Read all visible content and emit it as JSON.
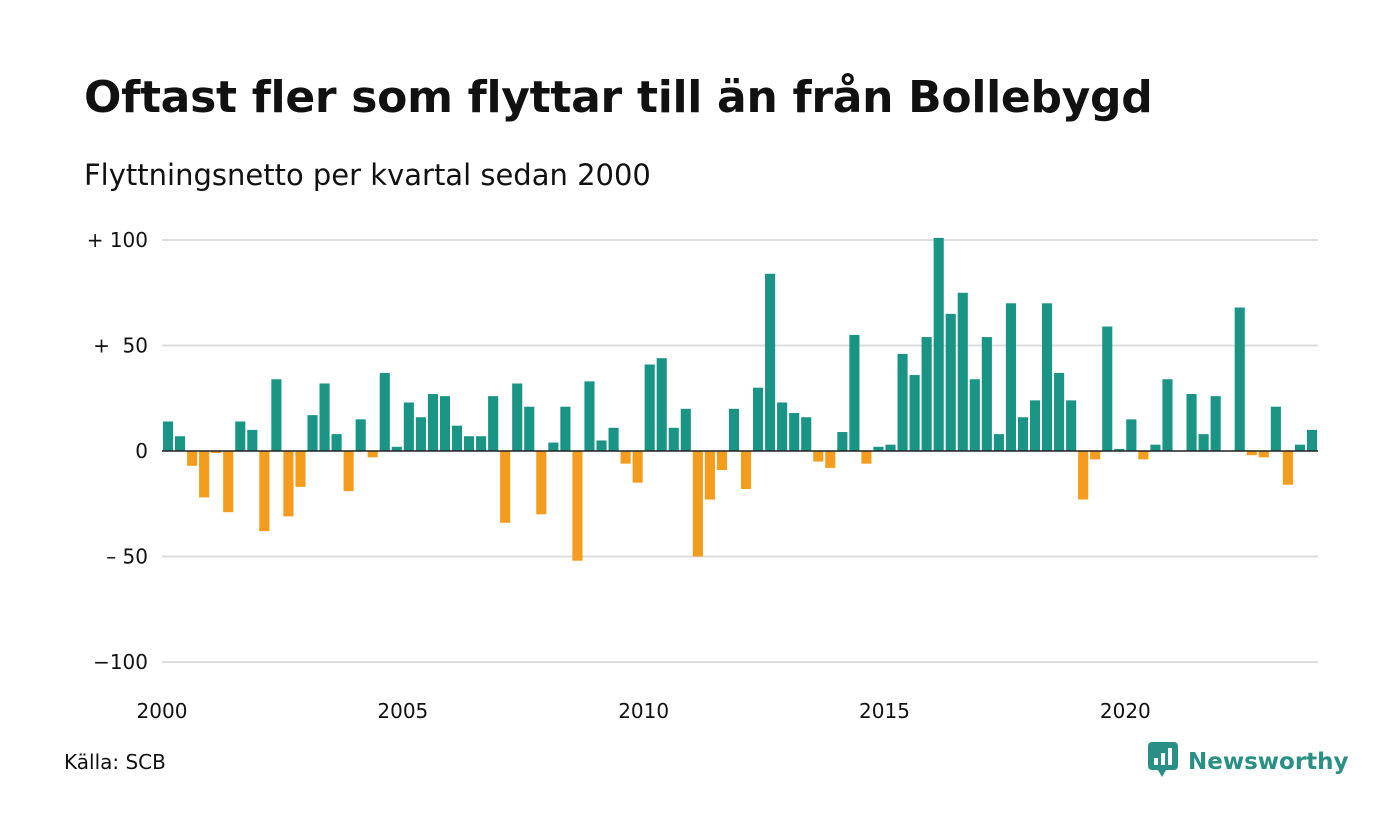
{
  "header": {
    "title": "Oftast fler som flyttar till än från Bollebygd",
    "subtitle": "Flyttningsnetto per kvartal sedan 2000"
  },
  "footer": {
    "source": "Källa: SCB",
    "brand": "Newsworthy",
    "brand_icon": "newsworthy-logo-icon"
  },
  "colors": {
    "positive": "#1a9585",
    "negative": "#f39c1e",
    "grid": "#dddddd",
    "brand": "#2a8f85"
  },
  "chart_data": {
    "type": "bar",
    "y_ticks": [
      {
        "value": 100,
        "label": "+ 100"
      },
      {
        "value": 50,
        "label": "+  50"
      },
      {
        "value": 0,
        "label": "0"
      },
      {
        "value": -50,
        "label": "– 50"
      },
      {
        "value": -100,
        "label": "−100"
      }
    ],
    "x_ticks": [
      {
        "value": 2000,
        "label": "2000"
      },
      {
        "value": 2005,
        "label": "2005"
      },
      {
        "value": 2010,
        "label": "2010"
      },
      {
        "value": 2015,
        "label": "2015"
      },
      {
        "value": 2020,
        "label": "2020"
      }
    ],
    "ylim": [
      -100,
      100
    ],
    "grid": true,
    "start": "2000-Q1",
    "end": "2023-Q4",
    "values": [
      14,
      7,
      -7,
      -22,
      -1,
      -29,
      14,
      10,
      -38,
      34,
      -31,
      -17,
      17,
      32,
      8,
      -19,
      15,
      -3,
      37,
      2,
      23,
      16,
      27,
      26,
      12,
      7,
      7,
      26,
      -34,
      32,
      21,
      -30,
      4,
      21,
      -52,
      33,
      5,
      11,
      -6,
      -15,
      41,
      44,
      11,
      20,
      -50,
      -23,
      -9,
      20,
      -18,
      30,
      84,
      23,
      18,
      16,
      -5,
      -8,
      9,
      55,
      -6,
      2,
      3,
      46,
      36,
      54,
      101,
      65,
      75,
      34,
      54,
      8,
      70,
      16,
      24,
      70,
      37,
      24,
      -23,
      -4,
      59,
      1,
      15,
      -4,
      3,
      34,
      0,
      27,
      8,
      26,
      0,
      68,
      -2,
      -3,
      21,
      -16,
      3,
      10
    ]
  }
}
